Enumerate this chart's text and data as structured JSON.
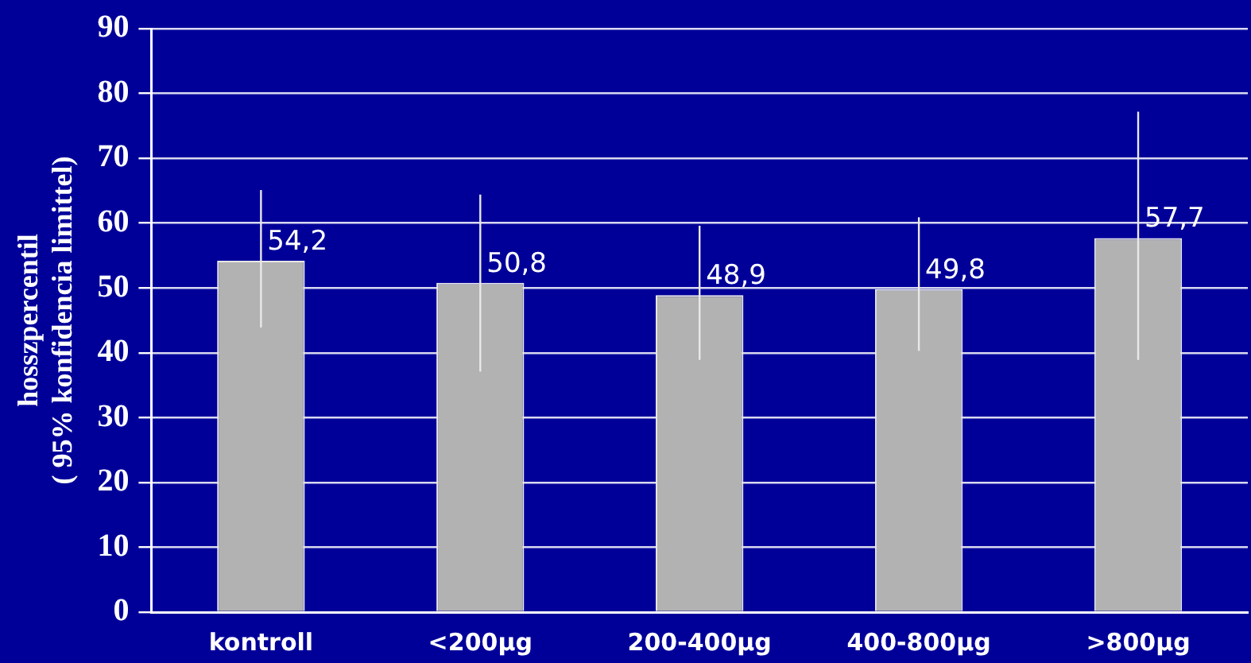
{
  "chart_data": {
    "type": "bar",
    "ylabel": "hosszpercentil\n( 95% konfidencia limittel)",
    "categories": [
      "kontroll",
      "<200µg",
      "200-400µg",
      "400-800µg",
      ">800µg"
    ],
    "values": [
      54.2,
      50.8,
      48.9,
      49.8,
      57.7
    ],
    "value_labels": [
      "54,2",
      "50,8",
      "48,9",
      "49,8",
      "57,7"
    ],
    "errors": [
      [
        43.9,
        65.1
      ],
      [
        37.1,
        64.4
      ],
      [
        38.9,
        59.6
      ],
      [
        40.3,
        60.9
      ],
      [
        38.9,
        77.2
      ]
    ],
    "color": "#b2b2b2",
    "ylim": [
      0,
      90
    ],
    "yticks": [
      0,
      10,
      20,
      30,
      40,
      50,
      60,
      70,
      80,
      90
    ],
    "grid": "y",
    "legend": false
  }
}
